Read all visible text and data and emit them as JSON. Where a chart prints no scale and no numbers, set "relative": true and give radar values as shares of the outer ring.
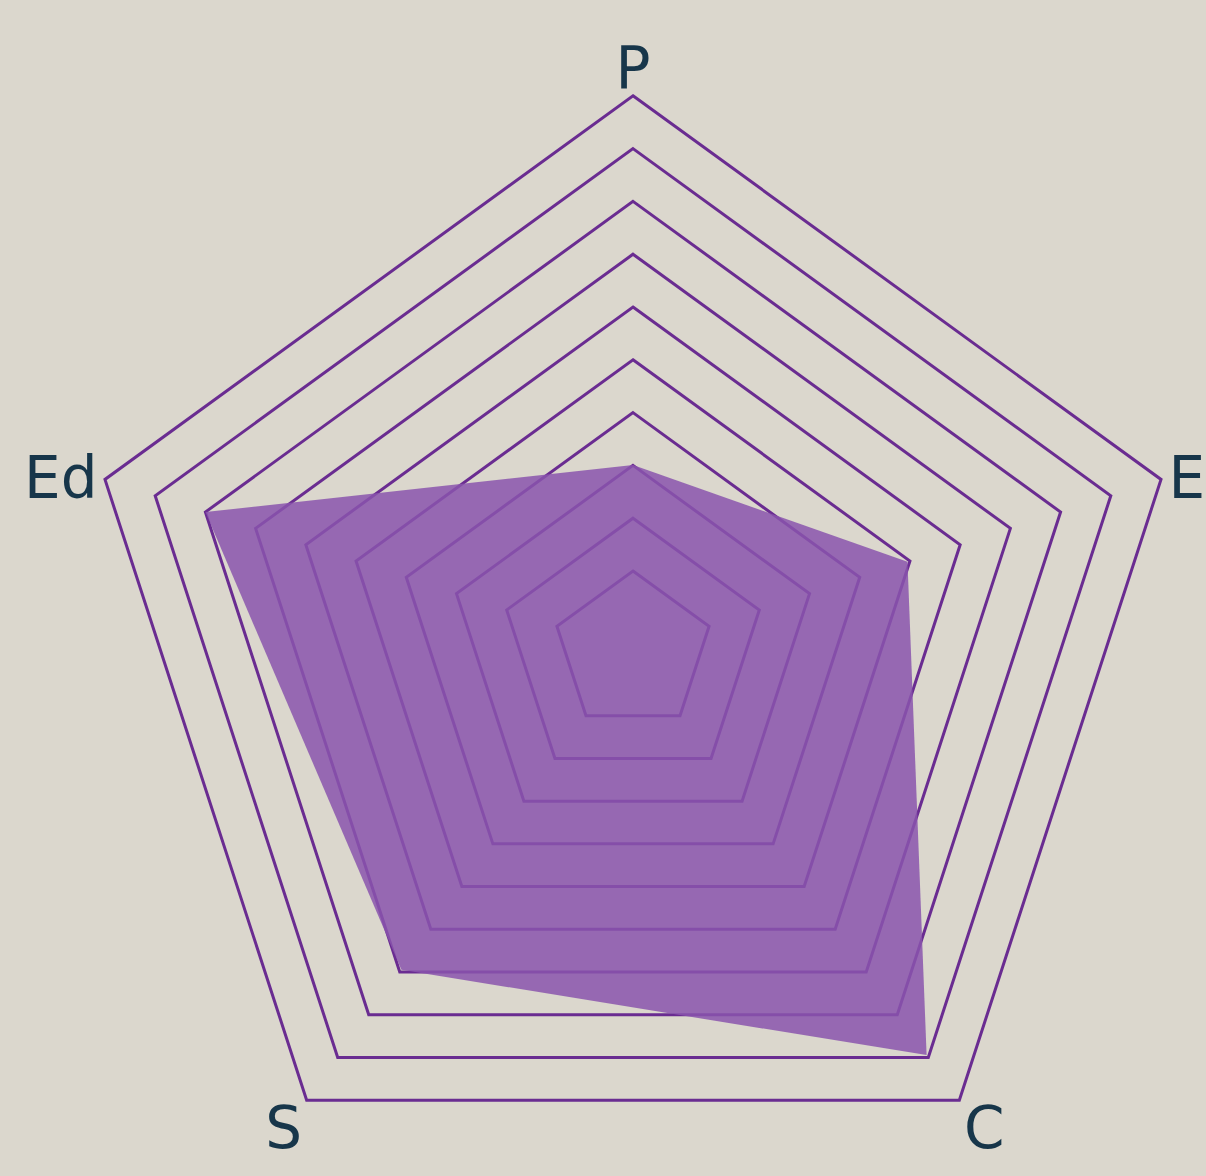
{
  "chart_data": {
    "type": "radar",
    "relative": true,
    "categories": [
      "P",
      "E",
      "C",
      "S",
      "Ed"
    ],
    "series": [
      {
        "color": "#8a55ad",
        "values": [
          0.335,
          0.52,
          0.9,
          0.71,
          0.81
        ]
      }
    ],
    "grid": true
  }
}
